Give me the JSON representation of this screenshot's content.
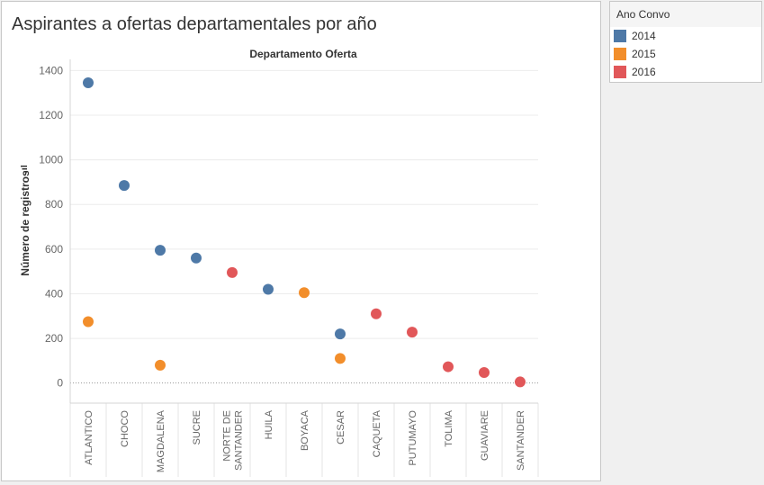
{
  "page": {
    "title": "Aspirantes a ofertas departamentales por año"
  },
  "legend": {
    "title": "Ano Convo",
    "items": [
      {
        "label": "2014",
        "color": "#4e79a7"
      },
      {
        "label": "2015",
        "color": "#f28e2b"
      },
      {
        "label": "2016",
        "color": "#e15759"
      }
    ]
  },
  "chart_data": {
    "type": "scatter",
    "title": "Departamento Oferta",
    "xlabel": "Departamento Oferta",
    "ylabel": "Número de registros",
    "ylim": [
      -90,
      1450
    ],
    "yticks": [
      0,
      200,
      400,
      600,
      800,
      1000,
      1200,
      1400
    ],
    "grid": true,
    "legend_position": "right",
    "categories": [
      "ATLANTICO",
      "CHOCO",
      "MAGDALENA",
      "SUCRE",
      "NORTE DE SANTANDER",
      "HUILA",
      "BOYACA",
      "CESAR",
      "CAQUETA",
      "PUTUMAYO",
      "TOLIMA",
      "GUAVIARE",
      "SANTANDER"
    ],
    "category_lines": [
      [
        "ATLANTICO"
      ],
      [
        "CHOCO"
      ],
      [
        "MAGDALENA"
      ],
      [
        "SUCRE"
      ],
      [
        "NORTE DE",
        "SANTANDER"
      ],
      [
        "HUILA"
      ],
      [
        "BOYACA"
      ],
      [
        "CESAR"
      ],
      [
        "CAQUETA"
      ],
      [
        "PUTUMAYO"
      ],
      [
        "TOLIMA"
      ],
      [
        "GUAVIARE"
      ],
      [
        "SANTANDER"
      ]
    ],
    "series": [
      {
        "name": "2014",
        "color": "#4e79a7",
        "points": [
          [
            "ATLANTICO",
            1345
          ],
          [
            "CHOCO",
            885
          ],
          [
            "MAGDALENA",
            595
          ],
          [
            "SUCRE",
            560
          ],
          [
            "HUILA",
            420
          ],
          [
            "CESAR",
            220
          ]
        ]
      },
      {
        "name": "2015",
        "color": "#f28e2b",
        "points": [
          [
            "ATLANTICO",
            275
          ],
          [
            "MAGDALENA",
            80
          ],
          [
            "BOYACA",
            405
          ],
          [
            "CESAR",
            110
          ]
        ]
      },
      {
        "name": "2016",
        "color": "#e15759",
        "points": [
          [
            "NORTE DE SANTANDER",
            495
          ],
          [
            "CAQUETA",
            310
          ],
          [
            "PUTUMAYO",
            228
          ],
          [
            "TOLIMA",
            73
          ],
          [
            "GUAVIARE",
            47
          ],
          [
            "SANTANDER",
            5
          ]
        ]
      }
    ]
  }
}
